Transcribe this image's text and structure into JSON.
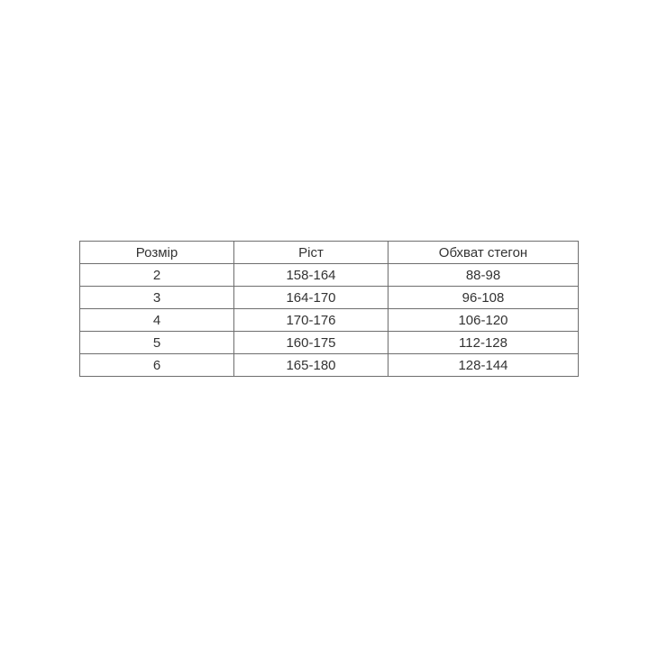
{
  "table": {
    "headers": [
      "Розмір",
      "Ріст",
      "Обхват стегон"
    ],
    "rows": [
      [
        "2",
        "158-164",
        "88-98"
      ],
      [
        "3",
        "164-170",
        "96-108"
      ],
      [
        "4",
        "170-176",
        "106-120"
      ],
      [
        "5",
        "160-175",
        "112-128"
      ],
      [
        "6",
        "165-180",
        "128-144"
      ]
    ]
  }
}
